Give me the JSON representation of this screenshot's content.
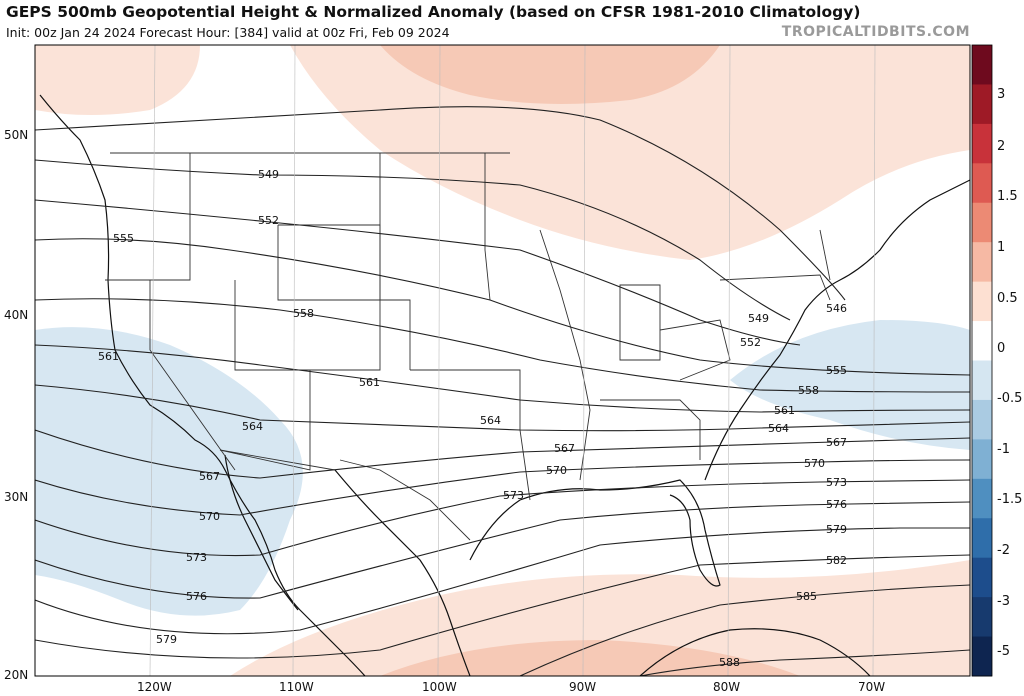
{
  "header": {
    "title": "GEPS 500mb Geopotential Height & Normalized Anomaly (based on CFSR 1981-2010 Climatology)",
    "subtitle": "Init: 00z Jan 24 2024   Forecast Hour: [384]   valid at 00z Fri, Feb 09 2024",
    "watermark": "TROPICALTIDBITS.COM"
  },
  "axes": {
    "lat_labels": [
      "50N",
      "40N",
      "30N",
      "20N"
    ],
    "lon_labels": [
      "120W",
      "110W",
      "100W",
      "90W",
      "80W",
      "70W"
    ]
  },
  "colorbar": {
    "labels": [
      "3",
      "2",
      "1.5",
      "1",
      "0.5",
      "0",
      "-0.5",
      "-1",
      "-1.5",
      "-2",
      "-3",
      "-5"
    ],
    "colors": [
      "#6e0a1e",
      "#9e1a26",
      "#c8323a",
      "#de5a52",
      "#ec8a74",
      "#f6b9a4",
      "#fde0d2",
      "#ffffff",
      "#d5e6f1",
      "#aacbe2",
      "#7fb0d3",
      "#4f8fc0",
      "#2f6eaa",
      "#1d4d8c",
      "#173a6e",
      "#0e2550"
    ]
  },
  "contour_labels": [
    "549",
    "552",
    "555",
    "558",
    "561",
    "564",
    "567",
    "570",
    "573",
    "576",
    "579",
    "582",
    "585",
    "588",
    "546"
  ],
  "anomaly_colors": {
    "warm_light": "#fbe3d8",
    "warm": "#f6c9b6",
    "cool": "#d7e7f2"
  }
}
